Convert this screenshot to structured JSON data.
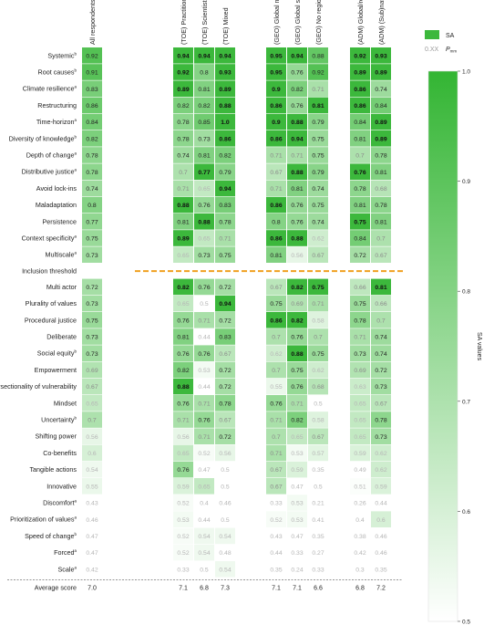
{
  "chart_data": {
    "type": "heatmap",
    "columns": [
      "All respondents",
      "(TOE) Practitioner",
      "(TOE) Scientist",
      "(TOE) Mixed",
      "(GEO) Global north",
      "(GEO) Global south",
      "(GEO) No region",
      "(ADM) Global/regional",
      "(ADM) (Sub)national"
    ],
    "rows": [
      {
        "label": "Systemic",
        "sup": "b",
        "values": [
          0.92,
          0.94,
          0.94,
          0.94,
          0.95,
          0.94,
          0.88,
          0.92,
          0.93
        ],
        "sig": [
          false,
          true,
          true,
          true,
          true,
          true,
          false,
          true,
          true
        ]
      },
      {
        "label": "Root causes",
        "sup": "b",
        "values": [
          0.91,
          0.92,
          0.8,
          0.93,
          0.95,
          0.76,
          0.92,
          0.89,
          0.89
        ],
        "sig": [
          false,
          true,
          false,
          true,
          true,
          false,
          false,
          true,
          true
        ]
      },
      {
        "label": "Climate resilience",
        "sup": "a",
        "values": [
          0.83,
          0.89,
          0.81,
          0.89,
          0.9,
          0.82,
          0.71,
          0.86,
          0.74
        ],
        "sig": [
          false,
          true,
          false,
          true,
          true,
          false,
          false,
          true,
          false
        ]
      },
      {
        "label": "Restructuring",
        "sup": "",
        "values": [
          0.86,
          0.82,
          0.82,
          0.88,
          0.86,
          0.76,
          0.81,
          0.86,
          0.84
        ],
        "sig": [
          false,
          false,
          false,
          true,
          true,
          false,
          true,
          true,
          false
        ]
      },
      {
        "label": "Time-horizon",
        "sup": "a",
        "values": [
          0.84,
          0.78,
          0.85,
          1.0,
          0.9,
          0.88,
          0.79,
          0.84,
          0.89
        ],
        "sig": [
          false,
          false,
          false,
          true,
          true,
          true,
          false,
          false,
          true
        ]
      },
      {
        "label": "Diversity of knowledge",
        "sup": "b",
        "values": [
          0.82,
          0.78,
          0.73,
          0.86,
          0.86,
          0.94,
          0.75,
          0.81,
          0.89
        ],
        "sig": [
          false,
          false,
          false,
          true,
          true,
          true,
          false,
          false,
          true
        ]
      },
      {
        "label": "Depth of change",
        "sup": "a",
        "values": [
          0.78,
          0.74,
          0.81,
          0.82,
          0.71,
          0.71,
          0.75,
          0.7,
          0.78
        ],
        "sig": [
          false,
          false,
          false,
          false,
          false,
          false,
          false,
          false,
          false
        ]
      },
      {
        "label": "Distributive justice",
        "sup": "a",
        "values": [
          0.78,
          0.7,
          0.77,
          0.79,
          0.67,
          0.88,
          0.79,
          0.76,
          0.81
        ],
        "sig": [
          false,
          false,
          true,
          false,
          false,
          true,
          false,
          true,
          false
        ]
      },
      {
        "label": "Avoid lock-ins",
        "sup": "",
        "values": [
          0.74,
          0.71,
          0.65,
          0.94,
          0.71,
          0.81,
          0.74,
          0.78,
          0.68
        ],
        "sig": [
          false,
          false,
          false,
          true,
          false,
          false,
          false,
          false,
          false
        ]
      },
      {
        "label": "Maladaptation",
        "sup": "",
        "values": [
          0.8,
          0.88,
          0.76,
          0.83,
          0.86,
          0.76,
          0.75,
          0.81,
          0.78
        ],
        "sig": [
          false,
          true,
          false,
          false,
          true,
          false,
          false,
          false,
          false
        ]
      },
      {
        "label": "Persistence",
        "sup": "",
        "values": [
          0.77,
          0.81,
          0.88,
          0.78,
          0.8,
          0.76,
          0.74,
          0.75,
          0.81
        ],
        "sig": [
          false,
          false,
          true,
          false,
          false,
          false,
          false,
          true,
          false
        ]
      },
      {
        "label": "Context specificity",
        "sup": "a",
        "values": [
          0.75,
          0.89,
          0.65,
          0.71,
          0.86,
          0.88,
          0.62,
          0.84,
          0.7
        ],
        "sig": [
          false,
          true,
          false,
          false,
          true,
          true,
          false,
          false,
          false
        ]
      },
      {
        "label": "Multiscale",
        "sup": "a",
        "values": [
          0.73,
          0.65,
          0.73,
          0.75,
          0.81,
          0.56,
          0.67,
          0.72,
          0.67
        ],
        "sig": [
          false,
          false,
          false,
          false,
          false,
          false,
          false,
          false,
          false
        ]
      },
      {
        "label": "Multi actor",
        "sup": "",
        "values": [
          0.72,
          0.82,
          0.76,
          0.72,
          0.67,
          0.82,
          0.75,
          0.66,
          0.81
        ],
        "sig": [
          false,
          true,
          false,
          false,
          false,
          true,
          true,
          false,
          true
        ]
      },
      {
        "label": "Plurality of values",
        "sup": "",
        "values": [
          0.73,
          0.65,
          0.5,
          0.94,
          0.75,
          0.69,
          0.71,
          0.75,
          0.66
        ],
        "sig": [
          false,
          false,
          false,
          true,
          false,
          false,
          false,
          false,
          false
        ]
      },
      {
        "label": "Procedural justice",
        "sup": "",
        "values": [
          0.75,
          0.76,
          0.71,
          0.72,
          0.86,
          0.82,
          0.58,
          0.78,
          0.7
        ],
        "sig": [
          false,
          false,
          false,
          false,
          true,
          true,
          false,
          false,
          false
        ]
      },
      {
        "label": "Deliberate",
        "sup": "",
        "values": [
          0.73,
          0.81,
          0.44,
          0.83,
          0.7,
          0.76,
          0.7,
          0.71,
          0.74
        ],
        "sig": [
          false,
          false,
          false,
          false,
          false,
          false,
          false,
          false,
          false
        ]
      },
      {
        "label": "Social equity",
        "sup": "b",
        "values": [
          0.73,
          0.76,
          0.76,
          0.67,
          0.62,
          0.88,
          0.75,
          0.73,
          0.74
        ],
        "sig": [
          false,
          false,
          false,
          false,
          false,
          true,
          false,
          false,
          false
        ]
      },
      {
        "label": "Empowerment",
        "sup": "",
        "values": [
          0.69,
          0.82,
          0.53,
          0.72,
          0.7,
          0.75,
          0.62,
          0.69,
          0.72
        ],
        "sig": [
          false,
          false,
          false,
          false,
          false,
          false,
          false,
          false,
          false
        ]
      },
      {
        "label": "Intersectionality of vulnerability",
        "sup": "",
        "values": [
          0.67,
          0.88,
          0.44,
          0.72,
          0.55,
          0.76,
          0.68,
          0.63,
          0.73
        ],
        "sig": [
          false,
          true,
          false,
          false,
          false,
          false,
          false,
          false,
          false
        ]
      },
      {
        "label": "Mindset",
        "sup": "",
        "values": [
          0.65,
          0.76,
          0.71,
          0.78,
          0.76,
          0.71,
          0.5,
          0.65,
          0.67
        ],
        "sig": [
          false,
          false,
          false,
          false,
          false,
          false,
          false,
          false,
          false
        ]
      },
      {
        "label": "Uncertainty",
        "sup": "b",
        "values": [
          0.7,
          0.71,
          0.76,
          0.67,
          0.71,
          0.82,
          0.58,
          0.65,
          0.78
        ],
        "sig": [
          false,
          false,
          false,
          false,
          false,
          false,
          false,
          false,
          false
        ]
      },
      {
        "label": "Shifting power",
        "sup": "",
        "values": [
          0.56,
          0.56,
          0.71,
          0.72,
          0.7,
          0.65,
          0.67,
          0.65,
          0.73
        ],
        "sig": [
          false,
          false,
          false,
          false,
          false,
          false,
          false,
          false,
          false
        ]
      },
      {
        "label": "Co-benefits",
        "sup": "",
        "values": [
          0.6,
          0.65,
          0.52,
          0.56,
          0.71,
          0.53,
          0.57,
          0.59,
          0.62
        ],
        "sig": [
          false,
          false,
          false,
          false,
          false,
          false,
          false,
          false,
          false
        ]
      },
      {
        "label": "Tangible actions",
        "sup": "",
        "values": [
          0.54,
          0.76,
          0.47,
          0.5,
          0.67,
          0.59,
          0.35,
          0.49,
          0.62
        ],
        "sig": [
          false,
          false,
          false,
          false,
          false,
          false,
          false,
          false,
          false
        ]
      },
      {
        "label": "Innovative",
        "sup": "",
        "values": [
          0.55,
          0.59,
          0.65,
          0.5,
          0.67,
          0.47,
          0.5,
          0.51,
          0.59
        ],
        "sig": [
          false,
          false,
          false,
          false,
          false,
          false,
          false,
          false,
          false
        ]
      },
      {
        "label": "Discomfort",
        "sup": "a",
        "values": [
          0.43,
          0.52,
          0.4,
          0.46,
          0.33,
          0.53,
          0.21,
          0.26,
          0.44
        ],
        "sig": [
          false,
          false,
          false,
          false,
          false,
          false,
          false,
          false,
          false
        ]
      },
      {
        "label": "Prioritization of values",
        "sup": "a",
        "values": [
          0.46,
          0.53,
          0.44,
          0.5,
          0.52,
          0.53,
          0.41,
          0.4,
          0.6
        ],
        "sig": [
          false,
          false,
          false,
          false,
          false,
          false,
          false,
          false,
          false
        ]
      },
      {
        "label": "Speed of change",
        "sup": "b",
        "values": [
          0.47,
          0.52,
          0.54,
          0.54,
          0.43,
          0.47,
          0.35,
          0.38,
          0.46
        ],
        "sig": [
          false,
          false,
          false,
          false,
          false,
          false,
          false,
          false,
          false
        ]
      },
      {
        "label": "Forced",
        "sup": "a",
        "values": [
          0.47,
          0.52,
          0.54,
          0.48,
          0.44,
          0.33,
          0.27,
          0.42,
          0.46
        ],
        "sig": [
          false,
          false,
          false,
          false,
          false,
          false,
          false,
          false,
          false
        ]
      },
      {
        "label": "Scale",
        "sup": "a",
        "values": [
          0.42,
          0.33,
          0.5,
          0.54,
          0.35,
          0.24,
          0.33,
          0.3,
          0.35
        ],
        "sig": [
          false,
          false,
          false,
          false,
          false,
          false,
          false,
          false,
          false
        ]
      }
    ],
    "threshold_after_row": 13,
    "threshold_label": "Inclusion threshold",
    "average_label": "Average score",
    "average_scores": [
      "7.0",
      "7.1",
      "6.8",
      "7.3",
      "7.1",
      "7.1",
      "6.6",
      "6.8",
      "7.2"
    ],
    "legend": {
      "sa_label": "SA",
      "pmm_value_label": "0.XX",
      "pmm_label": "P",
      "pmm_subscript": "mm"
    },
    "colorbar": {
      "label": "SA values",
      "ticks": [
        "1.0",
        "0.9",
        "0.8",
        "0.7",
        "0.6",
        "0.5"
      ],
      "range": [
        0.5,
        1.0
      ]
    },
    "colors": {
      "high": "#3cb83c",
      "low": "#ffffff",
      "sig_fill": "#3cb83c",
      "threshold": "#f0a020"
    }
  }
}
